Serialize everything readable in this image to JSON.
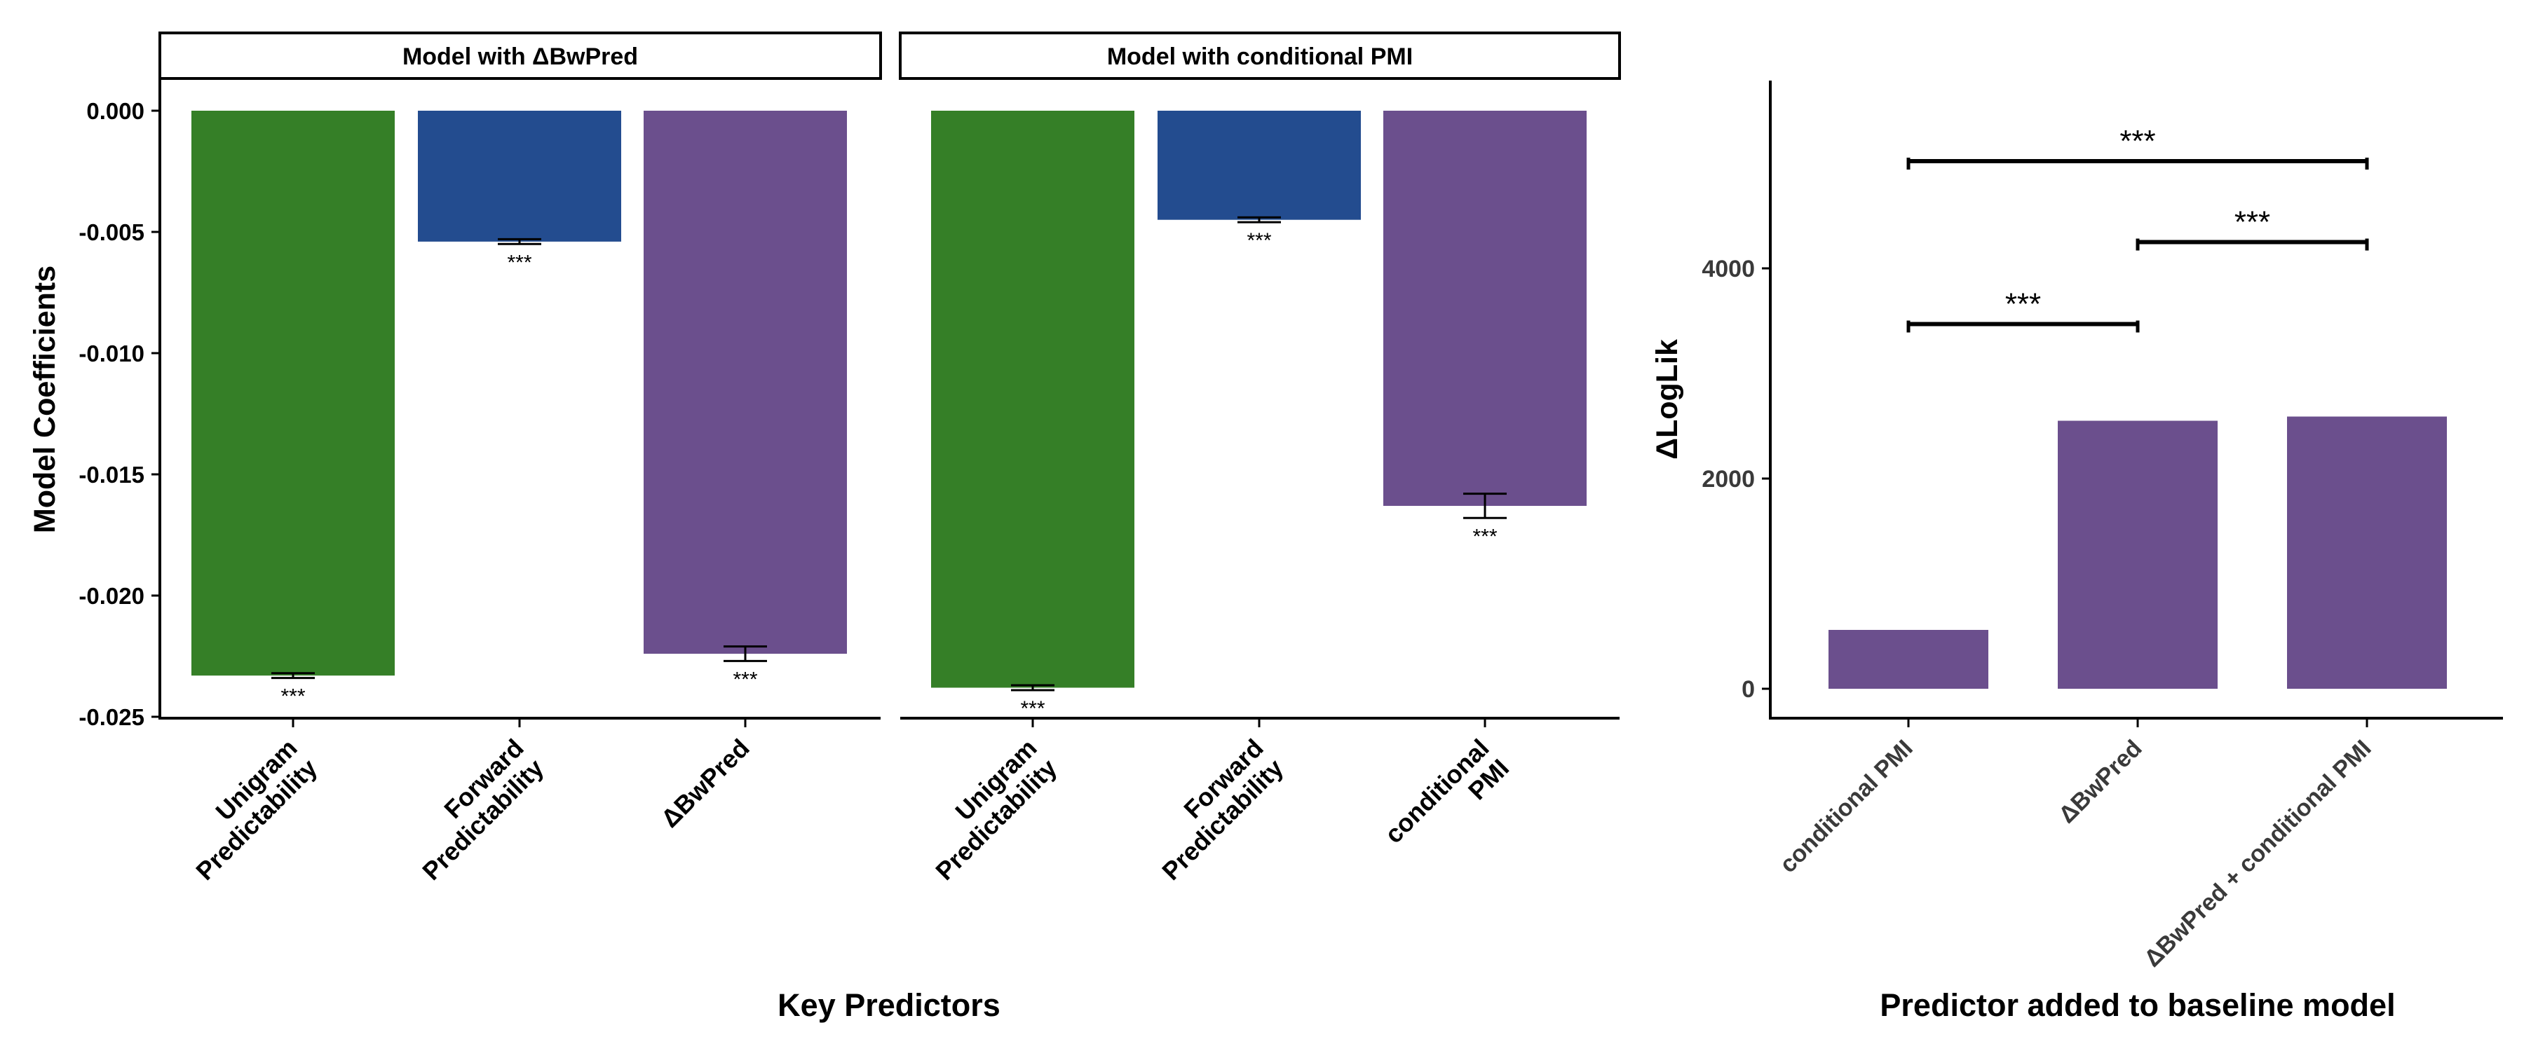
{
  "colors": {
    "green": "#357f27",
    "blue": "#234c8f",
    "purple": "#6b4f8d",
    "text": "#000000",
    "tick_text": "#3a3a3a"
  },
  "chart_data": [
    {
      "type": "bar",
      "facet_title": "Model with ΔBwPred",
      "categories": [
        "Unigram\nPredictability",
        "Forward\nPredictability",
        "ΔBwPred"
      ],
      "values": [
        -0.0233,
        -0.0054,
        -0.0224
      ],
      "errors": [
        0.0001,
        0.0001,
        0.0003
      ],
      "bar_colors": [
        "green",
        "blue",
        "purple"
      ],
      "significance": [
        "***",
        "***",
        "***"
      ],
      "ylabel": "Model Coefficients",
      "xlabel": "Key Predictors",
      "ylim": [
        -0.025,
        0.0
      ],
      "yticks": [
        0.0,
        -0.005,
        -0.01,
        -0.015,
        -0.02,
        -0.025
      ],
      "ytick_labels": [
        "0.000",
        "-0.005",
        "-0.010",
        "-0.015",
        "-0.020",
        "-0.025"
      ]
    },
    {
      "type": "bar",
      "facet_title": "Model with conditional PMI",
      "categories": [
        "Unigram\nPredictability",
        "Forward\nPredictability",
        "conditional\nPMI"
      ],
      "values": [
        -0.0238,
        -0.0045,
        -0.0163
      ],
      "errors": [
        0.0001,
        0.0001,
        0.0005
      ],
      "bar_colors": [
        "green",
        "blue",
        "purple"
      ],
      "significance": [
        "***",
        "***",
        "***"
      ],
      "ylabel": "Model Coefficients",
      "xlabel": "Key Predictors",
      "ylim": [
        -0.025,
        0.0
      ]
    },
    {
      "type": "bar",
      "categories": [
        "conditional PMI",
        "ΔBwPred",
        "ΔBwPred + conditional PMI"
      ],
      "values": [
        560,
        2550,
        2590
      ],
      "bar_colors": [
        "purple",
        "purple",
        "purple"
      ],
      "ylabel": "ΔLogLik",
      "xlabel": "Predictor added to baseline model",
      "yticks": [
        0,
        2000,
        4000
      ],
      "ytick_labels": [
        "0",
        "2000",
        "4000"
      ],
      "ylim": [
        -260,
        5800
      ],
      "comparisons": [
        {
          "from": 0,
          "to": 1,
          "y": 3470,
          "label": "***"
        },
        {
          "from": 1,
          "to": 2,
          "y": 4250,
          "label": "***"
        },
        {
          "from": 0,
          "to": 2,
          "y": 5020,
          "label": "***"
        }
      ]
    }
  ]
}
